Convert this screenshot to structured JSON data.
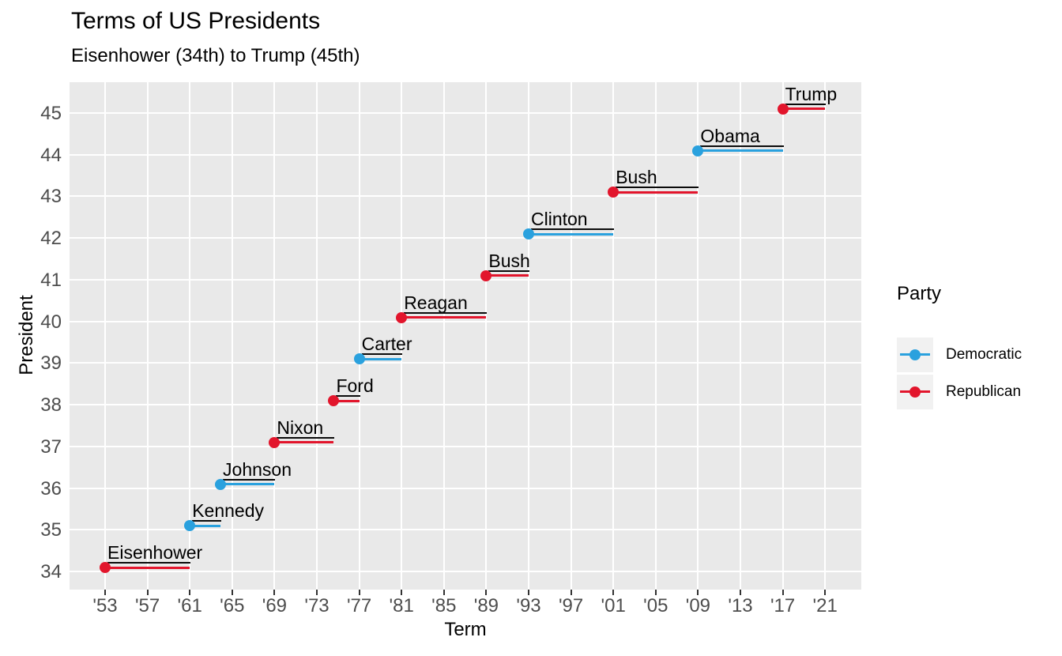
{
  "title": "Terms of US Presidents",
  "subtitle": "Eisenhower (34th) to Trump (45th)",
  "x_axis": {
    "label": "Term",
    "tick_labels": [
      "'53",
      "'57",
      "'61",
      "'65",
      "'69",
      "'73",
      "'77",
      "'81",
      "'85",
      "'89",
      "'93",
      "'97",
      "'01",
      "'05",
      "'09",
      "'13",
      "'17",
      "'21"
    ],
    "tick_years": [
      1953,
      1957,
      1961,
      1965,
      1969,
      1973,
      1977,
      1981,
      1985,
      1989,
      1993,
      1997,
      2001,
      2005,
      2009,
      2013,
      2017,
      2021
    ]
  },
  "y_axis": {
    "label": "President",
    "tick_labels": [
      "45",
      "44",
      "43",
      "42",
      "41",
      "40",
      "39",
      "38",
      "37",
      "36",
      "35",
      "34"
    ],
    "tick_values": [
      45,
      44,
      43,
      42,
      41,
      40,
      39,
      38,
      37,
      36,
      35,
      34
    ]
  },
  "legend": {
    "title": "Party",
    "entries": [
      {
        "label": "Democratic",
        "party": "Democratic"
      },
      {
        "label": "Republican",
        "party": "Republican"
      }
    ]
  },
  "colors": {
    "democratic": "#2aa1de",
    "republican": "#e2152c",
    "panel_background": "#e9e9e9",
    "gridline": "#ffffff",
    "tick_label": "#4d4d4d",
    "tick_mark": "#333333",
    "legend_key_background": "#f1f1f1",
    "text": "#000000"
  },
  "chart_data": {
    "type": "line",
    "subtype": "gantt-timeline-of-terms",
    "title": "Terms of US Presidents",
    "subtitle": "Eisenhower (34th) to Trump (45th)",
    "xlabel": "Term",
    "ylabel": "President",
    "xlim": [
      1949.6,
      2024.4
    ],
    "ylim": [
      33.5,
      45.5
    ],
    "x_ticks": [
      1953,
      1957,
      1961,
      1965,
      1969,
      1973,
      1977,
      1981,
      1985,
      1989,
      1993,
      1997,
      2001,
      2005,
      2009,
      2013,
      2017,
      2021
    ],
    "y_ticks": [
      34,
      35,
      36,
      37,
      38,
      39,
      40,
      41,
      42,
      43,
      44,
      45
    ],
    "grid": "major-only",
    "legend_position": "right",
    "point_marker": "dot-at-term-start",
    "presidents": [
      {
        "number": 34,
        "name": "Eisenhower",
        "party": "Republican",
        "start": 1953,
        "end": 1961
      },
      {
        "number": 35,
        "name": "Kennedy",
        "party": "Democratic",
        "start": 1961,
        "end": 1963.9
      },
      {
        "number": 36,
        "name": "Johnson",
        "party": "Democratic",
        "start": 1963.9,
        "end": 1969
      },
      {
        "number": 37,
        "name": "Nixon",
        "party": "Republican",
        "start": 1969,
        "end": 1974.6
      },
      {
        "number": 38,
        "name": "Ford",
        "party": "Republican",
        "start": 1974.6,
        "end": 1977
      },
      {
        "number": 39,
        "name": "Carter",
        "party": "Democratic",
        "start": 1977,
        "end": 1981
      },
      {
        "number": 40,
        "name": "Reagan",
        "party": "Republican",
        "start": 1981,
        "end": 1989
      },
      {
        "number": 41,
        "name": "Bush",
        "party": "Republican",
        "start": 1989,
        "end": 1993
      },
      {
        "number": 42,
        "name": "Clinton",
        "party": "Democratic",
        "start": 1993,
        "end": 2001
      },
      {
        "number": 43,
        "name": "Bush",
        "party": "Republican",
        "start": 2001,
        "end": 2009
      },
      {
        "number": 44,
        "name": "Obama",
        "party": "Democratic",
        "start": 2009,
        "end": 2017
      },
      {
        "number": 45,
        "name": "Trump",
        "party": "Republican",
        "start": 2017,
        "end": 2021
      }
    ]
  }
}
